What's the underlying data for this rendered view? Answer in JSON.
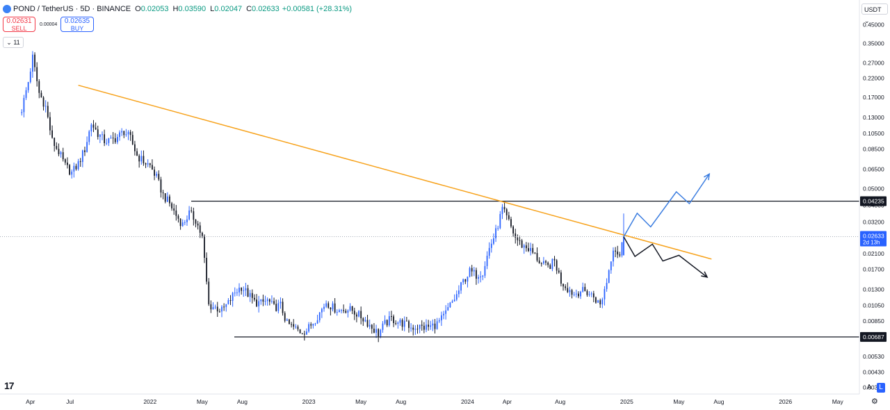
{
  "header": {
    "symbol": "POND / TetherUS · 5D · BINANCE",
    "o_label": "O",
    "o_value": "0.02053",
    "h_label": "H",
    "h_value": "0.03590",
    "l_label": "L",
    "l_value": "0.02047",
    "c_label": "C",
    "c_value": "0.02633",
    "change": "+0.00581 (+28.31%)"
  },
  "trade": {
    "sell_price": "0.02631",
    "sell_label": "SELL",
    "spread": "0.00004",
    "buy_price": "0.02635",
    "buy_label": "BUY"
  },
  "interval_button": "⌄ 11",
  "currency_selector": "USDT ⌄",
  "logo_text": "17",
  "scale_buttons": {
    "auto": "A",
    "log": "L"
  },
  "settings_icon": "gear-icon",
  "colors": {
    "up": "#2962ff",
    "down": "#131722",
    "trendline": "#f7a21b",
    "bull_projection": "#3b7de0",
    "bear_projection": "#131722",
    "last_price_badge": "#2962ff"
  },
  "chart_data": {
    "type": "candlestick",
    "scale": "log",
    "ylim": [
      0.0032,
      0.52
    ],
    "y_ticks": [
      0.45,
      0.35,
      0.27,
      0.22,
      0.17,
      0.13,
      0.105,
      0.085,
      0.065,
      0.05,
      0.04,
      0.032,
      0.021,
      0.017,
      0.013,
      0.0105,
      0.0085,
      0.0053,
      0.0043,
      0.0035
    ],
    "y_tick_labels": [
      "0.45000",
      "0.35000",
      "0.27000",
      "0.22000",
      "0.17000",
      "0.13000",
      "0.10500",
      "0.08500",
      "0.06500",
      "0.05000",
      "0.04000",
      "0.03200",
      "0.02100",
      "0.01700",
      "0.01300",
      "0.01050",
      "0.00850",
      "0.00530",
      "0.00430",
      "0.00350"
    ],
    "x_ticks": [
      {
        "label": "Apr",
        "date": "2021-04-01"
      },
      {
        "label": "Jul",
        "date": "2021-07-01"
      },
      {
        "label": "2022",
        "date": "2022-01-01"
      },
      {
        "label": "May",
        "date": "2022-05-01"
      },
      {
        "label": "Aug",
        "date": "2022-08-01"
      },
      {
        "label": "2023",
        "date": "2023-01-01"
      },
      {
        "label": "May",
        "date": "2023-05-01"
      },
      {
        "label": "Aug",
        "date": "2023-08-01"
      },
      {
        "label": "2024",
        "date": "2024-01-01"
      },
      {
        "label": "Apr",
        "date": "2024-04-01"
      },
      {
        "label": "Aug",
        "date": "2024-08-01"
      },
      {
        "label": "2025",
        "date": "2025-01-01"
      },
      {
        "label": "May",
        "date": "2025-05-01"
      },
      {
        "label": "Aug",
        "date": "2025-08-01"
      },
      {
        "label": "2026",
        "date": "2026-01-01"
      },
      {
        "label": "May",
        "date": "2026-05-01"
      }
    ],
    "x_range": [
      "2021-01-21",
      "2026-06-20"
    ],
    "closes": [
      {
        "t": "2021-03-12",
        "c": 0.145
      },
      {
        "t": "2021-03-27",
        "c": 0.21
      },
      {
        "t": "2021-04-06",
        "c": 0.29
      },
      {
        "t": "2021-04-21",
        "c": 0.18
      },
      {
        "t": "2021-05-06",
        "c": 0.15
      },
      {
        "t": "2021-05-21",
        "c": 0.095
      },
      {
        "t": "2021-06-05",
        "c": 0.082
      },
      {
        "t": "2021-06-20",
        "c": 0.068
      },
      {
        "t": "2021-07-05",
        "c": 0.062
      },
      {
        "t": "2021-07-20",
        "c": 0.07
      },
      {
        "t": "2021-08-04",
        "c": 0.085
      },
      {
        "t": "2021-08-19",
        "c": 0.12
      },
      {
        "t": "2021-09-03",
        "c": 0.105
      },
      {
        "t": "2021-09-18",
        "c": 0.095
      },
      {
        "t": "2021-10-03",
        "c": 0.095
      },
      {
        "t": "2021-10-18",
        "c": 0.1
      },
      {
        "t": "2021-11-02",
        "c": 0.108
      },
      {
        "t": "2021-11-17",
        "c": 0.098
      },
      {
        "t": "2021-12-02",
        "c": 0.078
      },
      {
        "t": "2021-12-17",
        "c": 0.072
      },
      {
        "t": "2022-01-01",
        "c": 0.068
      },
      {
        "t": "2022-01-16",
        "c": 0.058
      },
      {
        "t": "2022-01-31",
        "c": 0.046
      },
      {
        "t": "2022-02-15",
        "c": 0.041
      },
      {
        "t": "2022-03-02",
        "c": 0.035
      },
      {
        "t": "2022-03-17",
        "c": 0.031
      },
      {
        "t": "2022-04-01",
        "c": 0.036
      },
      {
        "t": "2022-04-16",
        "c": 0.033
      },
      {
        "t": "2022-05-01",
        "c": 0.026
      },
      {
        "t": "2022-05-16",
        "c": 0.0105
      },
      {
        "t": "2022-05-31",
        "c": 0.0102
      },
      {
        "t": "2022-06-15",
        "c": 0.0098
      },
      {
        "t": "2022-06-30",
        "c": 0.0108
      },
      {
        "t": "2022-07-15",
        "c": 0.0125
      },
      {
        "t": "2022-07-30",
        "c": 0.0135
      },
      {
        "t": "2022-08-14",
        "c": 0.0122
      },
      {
        "t": "2022-08-29",
        "c": 0.011
      },
      {
        "t": "2022-09-13",
        "c": 0.0108
      },
      {
        "t": "2022-09-28",
        "c": 0.0112
      },
      {
        "t": "2022-10-13",
        "c": 0.0102
      },
      {
        "t": "2022-10-28",
        "c": 0.0105
      },
      {
        "t": "2022-11-12",
        "c": 0.0082
      },
      {
        "t": "2022-11-27",
        "c": 0.0078
      },
      {
        "t": "2022-12-12",
        "c": 0.0074
      },
      {
        "t": "2022-12-27",
        "c": 0.0075
      },
      {
        "t": "2023-01-11",
        "c": 0.0084
      },
      {
        "t": "2023-01-26",
        "c": 0.0095
      },
      {
        "t": "2023-02-10",
        "c": 0.011
      },
      {
        "t": "2023-02-25",
        "c": 0.0102
      },
      {
        "t": "2023-03-12",
        "c": 0.0098
      },
      {
        "t": "2023-03-27",
        "c": 0.01
      },
      {
        "t": "2023-04-11",
        "c": 0.0098
      },
      {
        "t": "2023-04-26",
        "c": 0.0092
      },
      {
        "t": "2023-05-11",
        "c": 0.0086
      },
      {
        "t": "2023-05-26",
        "c": 0.0078
      },
      {
        "t": "2023-06-10",
        "c": 0.0072
      },
      {
        "t": "2023-06-25",
        "c": 0.0082
      },
      {
        "t": "2023-07-10",
        "c": 0.0088
      },
      {
        "t": "2023-07-25",
        "c": 0.0084
      },
      {
        "t": "2023-08-09",
        "c": 0.0082
      },
      {
        "t": "2023-08-24",
        "c": 0.0078
      },
      {
        "t": "2023-09-08",
        "c": 0.0079
      },
      {
        "t": "2023-09-23",
        "c": 0.0078
      },
      {
        "t": "2023-10-08",
        "c": 0.0079
      },
      {
        "t": "2023-10-23",
        "c": 0.0082
      },
      {
        "t": "2023-11-07",
        "c": 0.009
      },
      {
        "t": "2023-11-22",
        "c": 0.0105
      },
      {
        "t": "2023-12-07",
        "c": 0.012
      },
      {
        "t": "2023-12-22",
        "c": 0.0145
      },
      {
        "t": "2024-01-06",
        "c": 0.0165
      },
      {
        "t": "2024-01-21",
        "c": 0.0158
      },
      {
        "t": "2024-02-05",
        "c": 0.0165
      },
      {
        "t": "2024-02-20",
        "c": 0.0225
      },
      {
        "t": "2024-03-06",
        "c": 0.028
      },
      {
        "t": "2024-03-21",
        "c": 0.038
      },
      {
        "t": "2024-04-05",
        "c": 0.032
      },
      {
        "t": "2024-04-20",
        "c": 0.026
      },
      {
        "t": "2024-05-05",
        "c": 0.0235
      },
      {
        "t": "2024-05-20",
        "c": 0.0225
      },
      {
        "t": "2024-06-04",
        "c": 0.0205
      },
      {
        "t": "2024-06-19",
        "c": 0.0182
      },
      {
        "t": "2024-07-04",
        "c": 0.0175
      },
      {
        "t": "2024-07-19",
        "c": 0.019
      },
      {
        "t": "2024-08-03",
        "c": 0.0145
      },
      {
        "t": "2024-08-18",
        "c": 0.0132
      },
      {
        "t": "2024-09-02",
        "c": 0.0122
      },
      {
        "t": "2024-09-17",
        "c": 0.0128
      },
      {
        "t": "2024-10-02",
        "c": 0.0125
      },
      {
        "t": "2024-10-17",
        "c": 0.0118
      },
      {
        "t": "2024-11-01",
        "c": 0.0105
      },
      {
        "t": "2024-11-16",
        "c": 0.0145
      },
      {
        "t": "2024-12-01",
        "c": 0.023
      },
      {
        "t": "2024-12-16",
        "c": 0.0205
      },
      {
        "t": "2024-12-25",
        "c": 0.02633
      }
    ],
    "horizontal_levels": [
      {
        "value": 0.04235,
        "label": "0.04235"
      },
      {
        "value": 0.00687,
        "label": "0.00687"
      }
    ],
    "trendline": {
      "from": {
        "t": "2021-07-20",
        "v": 0.2
      },
      "to": {
        "t": "2025-07-15",
        "v": 0.0195
      }
    },
    "projection_bull": [
      {
        "t": "2024-12-25",
        "v": 0.0263
      },
      {
        "t": "2025-01-25",
        "v": 0.036
      },
      {
        "t": "2025-02-25",
        "v": 0.03
      },
      {
        "t": "2025-04-25",
        "v": 0.048
      },
      {
        "t": "2025-05-25",
        "v": 0.041
      },
      {
        "t": "2025-07-10",
        "v": 0.061
      }
    ],
    "projection_bear": [
      {
        "t": "2024-12-25",
        "v": 0.0263
      },
      {
        "t": "2025-01-20",
        "v": 0.0202
      },
      {
        "t": "2025-03-01",
        "v": 0.0238
      },
      {
        "t": "2025-03-25",
        "v": 0.019
      },
      {
        "t": "2025-05-01",
        "v": 0.0205
      },
      {
        "t": "2025-07-05",
        "v": 0.0153
      }
    ],
    "last_price": {
      "value": 0.02633,
      "label": "0.02633",
      "countdown": "2d 13h"
    }
  }
}
